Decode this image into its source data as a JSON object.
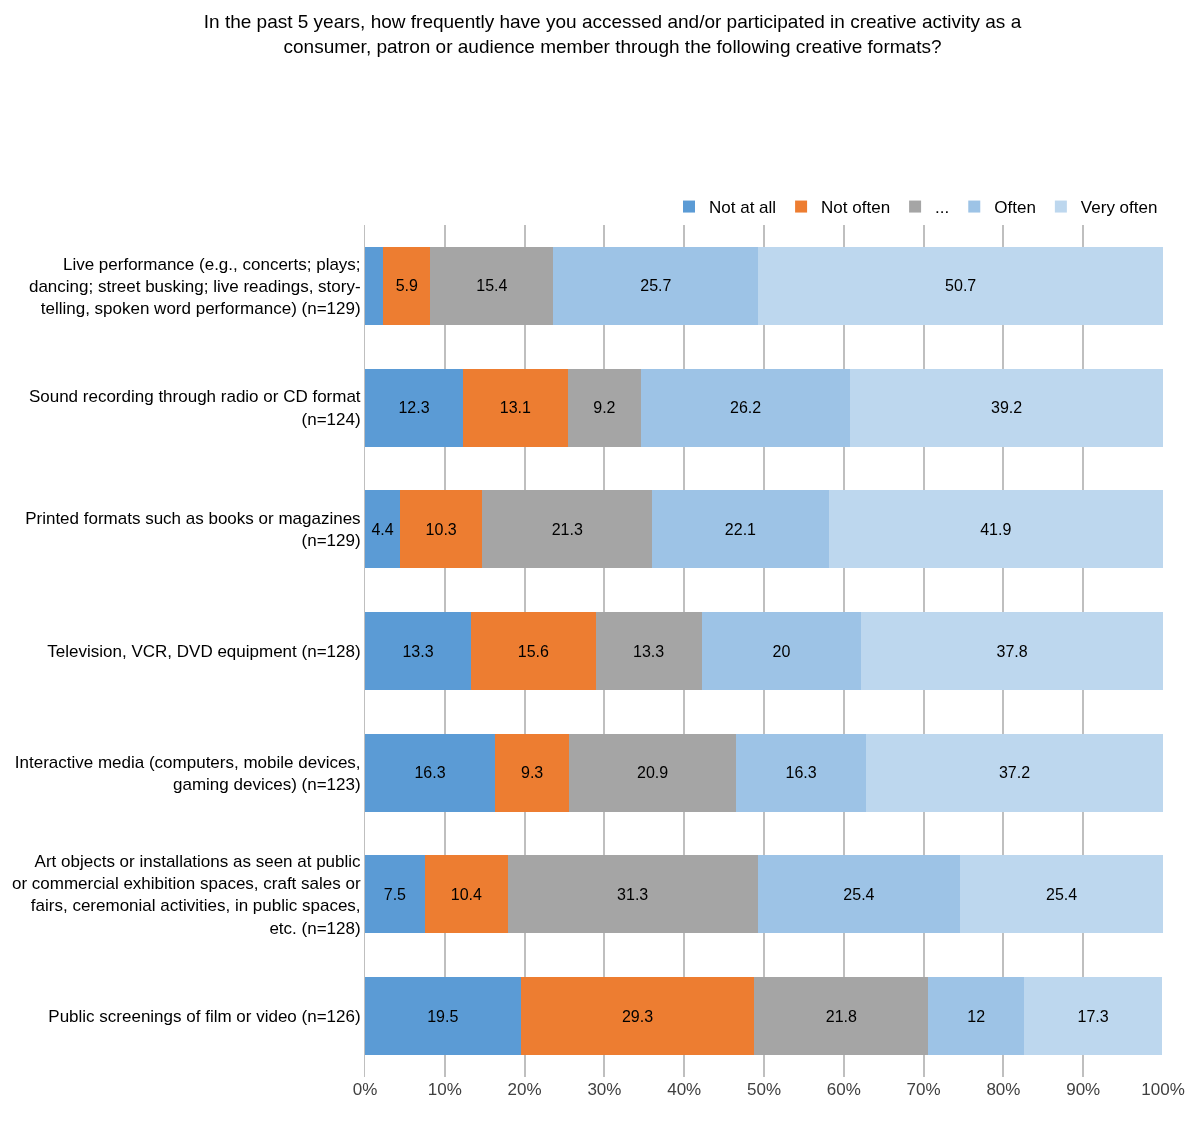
{
  "chart_data": {
    "type": "bar",
    "orientation": "horizontal",
    "stacked": true,
    "title": "In the past 5 years, how frequently have you accessed and/or participated in creative activity as a consumer, patron or audience member through the following creative formats?",
    "categories": [
      "Live performance (e.g., concerts; plays; dancing; street busking; live readings, story-telling, spoken word performance) (n=129)",
      "Sound recording through radio or CD format (n=124)",
      "Printed formats such as books or magazines (n=129)",
      "Television, VCR, DVD equipment (n=128)",
      "Interactive media (computers, mobile devices, gaming devices) (n=123)",
      "Art objects or installations as seen at public or commercial exhibition spaces, craft sales or fairs, ceremonial activities, in public spaces, etc. (n=128)",
      "Public screenings of film or video (n=126)"
    ],
    "series": [
      {
        "name": "Not at all",
        "color": "#5b9bd5",
        "values": [
          2.3,
          12.3,
          4.4,
          13.3,
          16.3,
          7.5,
          19.5
        ],
        "value_labels": [
          null,
          "12.3",
          "4.4",
          "13.3",
          "16.3",
          "7.5",
          "19.5"
        ]
      },
      {
        "name": "Not often",
        "color": "#ed7d31",
        "values": [
          5.9,
          13.1,
          10.3,
          15.6,
          9.3,
          10.4,
          29.3
        ],
        "value_labels": [
          "5.9",
          "13.1",
          "10.3",
          "15.6",
          "9.3",
          "10.4",
          "29.3"
        ]
      },
      {
        "name": "...",
        "color": "#a5a5a5",
        "values": [
          15.4,
          9.2,
          21.3,
          13.3,
          20.9,
          31.3,
          21.8
        ],
        "value_labels": [
          "15.4",
          "9.2",
          "21.3",
          "13.3",
          "20.9",
          "31.3",
          "21.8"
        ]
      },
      {
        "name": "Often",
        "color": "#9dc3e6",
        "values": [
          25.7,
          26.2,
          22.1,
          20,
          16.3,
          25.4,
          12
        ],
        "value_labels": [
          "25.7",
          "26.2",
          "22.1",
          "20",
          "16.3",
          "25.4",
          "12"
        ]
      },
      {
        "name": "Very often",
        "color": "#bdd7ee",
        "values": [
          50.7,
          39.2,
          41.9,
          37.8,
          37.2,
          25.4,
          17.3
        ],
        "value_labels": [
          "50.7",
          "39.2",
          "41.9",
          "37.8",
          "37.2",
          "25.4",
          "17.3"
        ]
      }
    ],
    "xlim": [
      0,
      100
    ],
    "xticks": [
      {
        "value": 0,
        "label": "0%"
      },
      {
        "value": 10,
        "label": "10%"
      },
      {
        "value": 20,
        "label": "20%"
      },
      {
        "value": 30,
        "label": "30%"
      },
      {
        "value": 40,
        "label": "40%"
      },
      {
        "value": 50,
        "label": "50%"
      },
      {
        "value": 60,
        "label": "60%"
      },
      {
        "value": 70,
        "label": "70%"
      },
      {
        "value": 80,
        "label": "80%"
      },
      {
        "value": 90,
        "label": "90%"
      },
      {
        "value": 100,
        "label": "100%"
      }
    ],
    "grid": "x",
    "legend": "top right"
  }
}
